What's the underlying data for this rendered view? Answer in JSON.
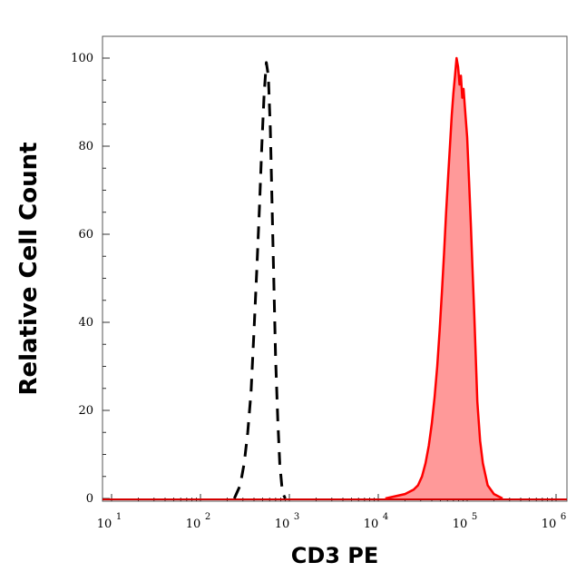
{
  "chart_data": {
    "type": "area",
    "title": "",
    "xlabel": "CD3 PE",
    "ylabel": "Relative Cell Count",
    "x_scale": "log",
    "xlim": [
      10,
      1000000
    ],
    "ylim": [
      0,
      104
    ],
    "x_ticks": [
      {
        "base": "10",
        "exp": "1",
        "value": 10
      },
      {
        "base": "10",
        "exp": "2",
        "value": 100
      },
      {
        "base": "10",
        "exp": "3",
        "value": 1000
      },
      {
        "base": "10",
        "exp": "4",
        "value": 10000
      },
      {
        "base": "10",
        "exp": "5",
        "value": 100000
      },
      {
        "base": "10",
        "exp": "6",
        "value": 1000000
      }
    ],
    "y_ticks": [
      "0",
      "20",
      "40",
      "60",
      "80",
      "100"
    ],
    "grid": false,
    "series": [
      {
        "style": "dashed",
        "color": "#000000",
        "x": [
          240,
          280,
          310,
          340,
          370,
          400,
          430,
          460,
          490,
          520,
          550,
          580,
          610,
          640,
          670,
          700,
          740,
          780,
          820,
          850,
          900
        ],
        "y": [
          0,
          3,
          8,
          15,
          24,
          38,
          52,
          66,
          80,
          92,
          99,
          96,
          84,
          66,
          48,
          32,
          18,
          8,
          3,
          1,
          0
        ]
      },
      {
        "style": "filled",
        "color": "#ff0000",
        "fill": "#ff9999",
        "x": [
          12000,
          20000,
          25000,
          28000,
          31000,
          34000,
          37000,
          40000,
          43000,
          46000,
          49000,
          52000,
          55000,
          58000,
          61000,
          64000,
          67000,
          70000,
          73000,
          76000,
          79000,
          82000,
          85000,
          88000,
          91000,
          95000,
          100000,
          105000,
          110000,
          115000,
          120000,
          125000,
          130000,
          140000,
          150000,
          170000,
          200000,
          250000
        ],
        "y": [
          0,
          1,
          2,
          3,
          5,
          8,
          12,
          17,
          23,
          30,
          38,
          47,
          56,
          65,
          73,
          80,
          87,
          92,
          96,
          100,
          98,
          94,
          96,
          91,
          93,
          88,
          82,
          72,
          62,
          52,
          42,
          32,
          22,
          13,
          8,
          3,
          1,
          0
        ]
      }
    ]
  }
}
